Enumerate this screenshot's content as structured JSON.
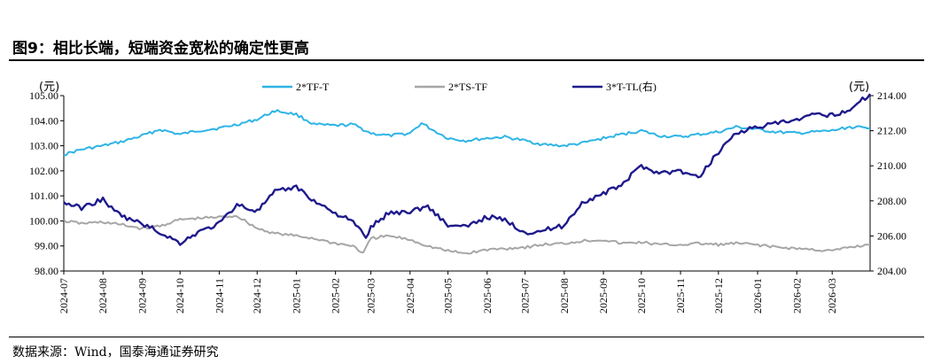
{
  "figure": {
    "title": "图9：相比长端，短端资金宽松的确定性更高",
    "source": "数据来源：Wind，国泰海通证券研究"
  },
  "chart_data": {
    "type": "line",
    "y_left": {
      "unit": "(元)",
      "range": [
        98,
        105
      ],
      "ticks": [
        "98.00",
        "99.00",
        "100.00",
        "101.00",
        "102.00",
        "103.00",
        "104.00",
        "105.00"
      ]
    },
    "y_right": {
      "unit": "(元)",
      "range": [
        204,
        214
      ],
      "ticks": [
        "204.00",
        "206.00",
        "208.00",
        "210.00",
        "212.00",
        "214.00"
      ]
    },
    "x_range": [
      "2024-07-01",
      "2026-03-31"
    ],
    "x_ticks": [
      "2024-07",
      "2024-08",
      "2024-09",
      "2024-10",
      "2024-11",
      "2024-12",
      "2025-01",
      "2025-02",
      "2025-03",
      "2025-04",
      "2025-05",
      "2025-06",
      "2025-07",
      "2025-08",
      "2025-09",
      "2025-10",
      "2025-11",
      "2025-12",
      "2026-01",
      "2026-02",
      "2026-03"
    ],
    "grid": false,
    "legend_position": "top",
    "series": [
      {
        "name": "2*TF-T",
        "axis": "left",
        "color": "#2eb4e6",
        "points": [
          [
            "2024-07-01",
            102.65
          ],
          [
            "2024-07-15",
            102.85
          ],
          [
            "2024-08-01",
            103.0
          ],
          [
            "2024-08-15",
            103.15
          ],
          [
            "2024-09-01",
            103.4
          ],
          [
            "2024-09-15",
            103.65
          ],
          [
            "2024-10-01",
            103.45
          ],
          [
            "2024-10-15",
            103.6
          ],
          [
            "2024-11-01",
            103.7
          ],
          [
            "2024-11-15",
            103.85
          ],
          [
            "2024-12-01",
            104.05
          ],
          [
            "2024-12-15",
            104.4
          ],
          [
            "2025-01-01",
            104.25
          ],
          [
            "2025-01-15",
            103.85
          ],
          [
            "2025-02-01",
            103.8
          ],
          [
            "2025-02-15",
            103.85
          ],
          [
            "2025-03-01",
            103.5
          ],
          [
            "2025-03-15",
            103.4
          ],
          [
            "2025-04-01",
            103.5
          ],
          [
            "2025-04-10",
            103.9
          ],
          [
            "2025-04-20",
            103.6
          ],
          [
            "2025-05-01",
            103.3
          ],
          [
            "2025-05-15",
            103.2
          ],
          [
            "2025-06-01",
            103.3
          ],
          [
            "2025-06-15",
            103.35
          ],
          [
            "2025-07-01",
            103.2
          ],
          [
            "2025-07-15",
            103.05
          ],
          [
            "2025-08-01",
            103.0
          ],
          [
            "2025-08-15",
            103.1
          ],
          [
            "2025-09-01",
            103.3
          ],
          [
            "2025-09-15",
            103.45
          ],
          [
            "2025-10-01",
            103.6
          ],
          [
            "2025-10-15",
            103.4
          ],
          [
            "2025-11-01",
            103.35
          ],
          [
            "2025-11-15",
            103.45
          ],
          [
            "2025-12-01",
            103.55
          ],
          [
            "2025-12-15",
            103.75
          ],
          [
            "2026-01-01",
            103.65
          ],
          [
            "2026-01-15",
            103.55
          ],
          [
            "2026-02-01",
            103.5
          ],
          [
            "2026-02-15",
            103.55
          ],
          [
            "2026-03-01",
            103.6
          ],
          [
            "2026-03-15",
            103.75
          ],
          [
            "2026-03-31",
            103.7
          ]
        ]
      },
      {
        "name": "2*TS-TF",
        "axis": "left",
        "color": "#a6a6a6",
        "points": [
          [
            "2024-07-01",
            100.0
          ],
          [
            "2024-07-15",
            99.9
          ],
          [
            "2024-08-01",
            99.95
          ],
          [
            "2024-08-15",
            99.85
          ],
          [
            "2024-09-01",
            99.7
          ],
          [
            "2024-09-15",
            99.8
          ],
          [
            "2024-10-01",
            100.05
          ],
          [
            "2024-10-15",
            100.1
          ],
          [
            "2024-11-01",
            100.15
          ],
          [
            "2024-11-15",
            100.2
          ],
          [
            "2024-12-01",
            99.7
          ],
          [
            "2024-12-15",
            99.5
          ],
          [
            "2025-01-01",
            99.4
          ],
          [
            "2025-01-15",
            99.3
          ],
          [
            "2025-02-01",
            99.1
          ],
          [
            "2025-02-15",
            99.0
          ],
          [
            "2025-02-23",
            98.7
          ],
          [
            "2025-03-01",
            99.3
          ],
          [
            "2025-03-15",
            99.4
          ],
          [
            "2025-04-01",
            99.25
          ],
          [
            "2025-04-15",
            99.0
          ],
          [
            "2025-05-01",
            98.8
          ],
          [
            "2025-05-15",
            98.7
          ],
          [
            "2025-06-01",
            98.85
          ],
          [
            "2025-06-15",
            98.9
          ],
          [
            "2025-07-01",
            98.95
          ],
          [
            "2025-07-15",
            99.05
          ],
          [
            "2025-08-01",
            99.1
          ],
          [
            "2025-08-15",
            99.2
          ],
          [
            "2025-09-01",
            99.25
          ],
          [
            "2025-09-15",
            99.1
          ],
          [
            "2025-10-01",
            99.15
          ],
          [
            "2025-10-15",
            99.05
          ],
          [
            "2025-11-01",
            99.05
          ],
          [
            "2025-11-15",
            99.1
          ],
          [
            "2025-12-01",
            99.05
          ],
          [
            "2025-12-15",
            99.1
          ],
          [
            "2026-01-01",
            99.05
          ],
          [
            "2026-01-15",
            98.95
          ],
          [
            "2026-02-01",
            98.9
          ],
          [
            "2026-02-15",
            98.85
          ],
          [
            "2026-03-01",
            98.8
          ],
          [
            "2026-03-15",
            98.95
          ],
          [
            "2026-03-31",
            99.05
          ]
        ]
      },
      {
        "name": "3*T-TL(右)",
        "axis": "right",
        "color": "#1f1a8c",
        "points": [
          [
            "2024-07-01",
            207.9
          ],
          [
            "2024-07-15",
            207.6
          ],
          [
            "2024-08-01",
            208.1
          ],
          [
            "2024-08-10",
            207.4
          ],
          [
            "2024-08-20",
            207.0
          ],
          [
            "2024-09-01",
            206.7
          ],
          [
            "2024-09-15",
            206.2
          ],
          [
            "2024-10-01",
            205.6
          ],
          [
            "2024-10-15",
            206.2
          ],
          [
            "2024-11-01",
            206.7
          ],
          [
            "2024-11-15",
            207.8
          ],
          [
            "2024-12-01",
            207.4
          ],
          [
            "2024-12-15",
            208.5
          ],
          [
            "2025-01-01",
            208.8
          ],
          [
            "2025-01-15",
            208.0
          ],
          [
            "2025-02-01",
            207.3
          ],
          [
            "2025-02-15",
            206.8
          ],
          [
            "2025-02-25",
            205.9
          ],
          [
            "2025-03-01",
            206.5
          ],
          [
            "2025-03-15",
            207.3
          ],
          [
            "2025-04-01",
            207.4
          ],
          [
            "2025-04-15",
            207.7
          ],
          [
            "2025-05-01",
            206.6
          ],
          [
            "2025-05-15",
            206.5
          ],
          [
            "2025-06-01",
            207.1
          ],
          [
            "2025-06-15",
            206.9
          ],
          [
            "2025-07-01",
            206.2
          ],
          [
            "2025-07-15",
            206.3
          ],
          [
            "2025-08-01",
            206.6
          ],
          [
            "2025-08-15",
            207.9
          ],
          [
            "2025-09-01",
            208.4
          ],
          [
            "2025-09-15",
            208.9
          ],
          [
            "2025-10-01",
            210.0
          ],
          [
            "2025-10-15",
            209.6
          ],
          [
            "2025-11-01",
            209.7
          ],
          [
            "2025-11-15",
            209.3
          ],
          [
            "2025-12-01",
            210.8
          ],
          [
            "2025-12-15",
            211.9
          ],
          [
            "2026-01-01",
            212.2
          ],
          [
            "2026-01-15",
            212.4
          ],
          [
            "2026-02-01",
            212.6
          ],
          [
            "2026-02-15",
            212.9
          ],
          [
            "2026-03-01",
            212.9
          ],
          [
            "2026-03-15",
            213.2
          ],
          [
            "2026-03-31",
            214.1
          ]
        ]
      }
    ]
  }
}
